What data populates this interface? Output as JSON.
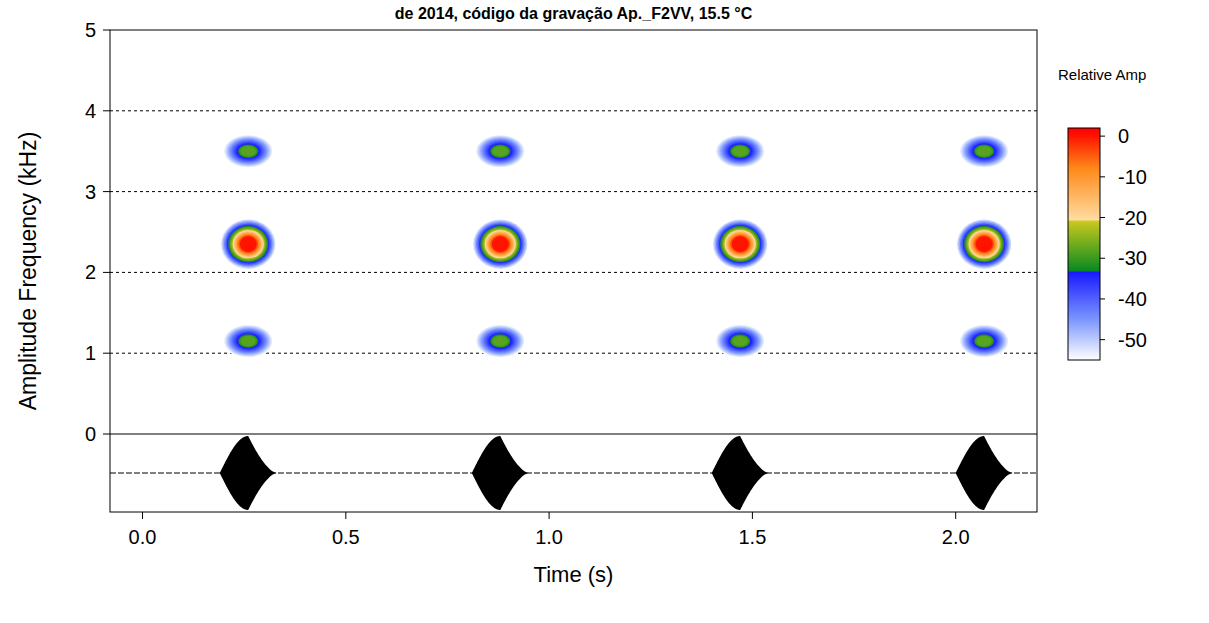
{
  "chart_data": {
    "type": "spectrogram",
    "title": "de 2014, código da gravação Ap._F2VV, 15.5 °C",
    "x_label": "Time (s)",
    "y_label": "Amplitude Frequency (kHz)",
    "xlim": [
      -0.08,
      2.2
    ],
    "xticks": [
      {
        "value": 0,
        "label": "0.0"
      },
      0.5,
      {
        "value": 1,
        "label": "1.0"
      },
      1.5,
      {
        "value": 2,
        "label": "2.0"
      }
    ],
    "ylim": [
      0,
      5
    ],
    "yticks": [
      0,
      1,
      2,
      3,
      4,
      5
    ],
    "grid": true,
    "colorbar": {
      "label": "Relative Amp",
      "range": [
        -55,
        2
      ],
      "ticks": [
        0,
        -10,
        -20,
        -30,
        -40,
        -50
      ]
    },
    "oscillogram": {
      "ylim": [
        -1,
        1
      ]
    },
    "notes": [
      {
        "start": 0.19,
        "peak": 0.26,
        "end": 0.33,
        "peak_amplitude": 0.95,
        "bands": [
          {
            "frequency": 1.15,
            "amplitude": -28
          },
          {
            "frequency": 2.35,
            "amplitude": 0
          },
          {
            "frequency": 3.5,
            "amplitude": -28
          }
        ]
      },
      {
        "start": 0.81,
        "peak": 0.88,
        "end": 0.95,
        "peak_amplitude": 0.95,
        "bands": [
          {
            "frequency": 1.15,
            "amplitude": -28
          },
          {
            "frequency": 2.35,
            "amplitude": 0
          },
          {
            "frequency": 3.5,
            "amplitude": -28
          }
        ]
      },
      {
        "start": 1.4,
        "peak": 1.47,
        "end": 1.54,
        "peak_amplitude": 0.95,
        "bands": [
          {
            "frequency": 1.15,
            "amplitude": -28
          },
          {
            "frequency": 2.35,
            "amplitude": 0
          },
          {
            "frequency": 3.5,
            "amplitude": -28
          }
        ]
      },
      {
        "start": 2.0,
        "peak": 2.07,
        "end": 2.14,
        "peak_amplitude": 0.95,
        "bands": [
          {
            "frequency": 1.15,
            "amplitude": -28
          },
          {
            "frequency": 2.35,
            "amplitude": 0
          },
          {
            "frequency": 3.5,
            "amplitude": -28
          }
        ]
      }
    ]
  }
}
